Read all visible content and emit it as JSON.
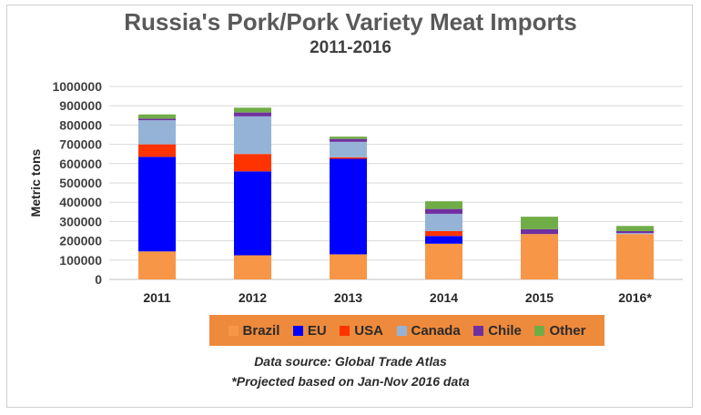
{
  "chart_data": {
    "type": "bar",
    "stacked": true,
    "title": "Russia's Pork/Pork Variety Meat Imports",
    "subtitle": "2011-2016",
    "xlabel": "",
    "ylabel": "Metric tons",
    "ylim": [
      0,
      1000000
    ],
    "yticks": [
      "0",
      "100000",
      "200000",
      "300000",
      "400000",
      "500000",
      "600000",
      "700000",
      "800000",
      "900000",
      "1000000"
    ],
    "grid": true,
    "legend_position": "bottom",
    "categories": [
      "2011",
      "2012",
      "2013",
      "2014",
      "2015",
      "2016*"
    ],
    "series": [
      {
        "name": "Brazil",
        "color": "#f79646",
        "values": [
          145000,
          125000,
          130000,
          185000,
          235000,
          235000
        ]
      },
      {
        "name": "EU",
        "color": "#0000ff",
        "values": [
          490000,
          435000,
          495000,
          40000,
          0,
          0
        ]
      },
      {
        "name": "USA",
        "color": "#ff3300",
        "values": [
          65000,
          90000,
          8000,
          25000,
          0,
          0
        ]
      },
      {
        "name": "Canada",
        "color": "#95b3d7",
        "values": [
          125000,
          195000,
          80000,
          90000,
          0,
          5000
        ]
      },
      {
        "name": "Chile",
        "color": "#7030a0",
        "values": [
          8000,
          20000,
          15000,
          25000,
          25000,
          10000
        ]
      },
      {
        "name": "Other",
        "color": "#70ad47",
        "values": [
          22000,
          25000,
          12000,
          40000,
          65000,
          27000
        ]
      }
    ]
  },
  "notes": {
    "source": "Data source: Global Trade Atlas",
    "projection": "*Projected  based on Jan-Nov 2016 data"
  }
}
